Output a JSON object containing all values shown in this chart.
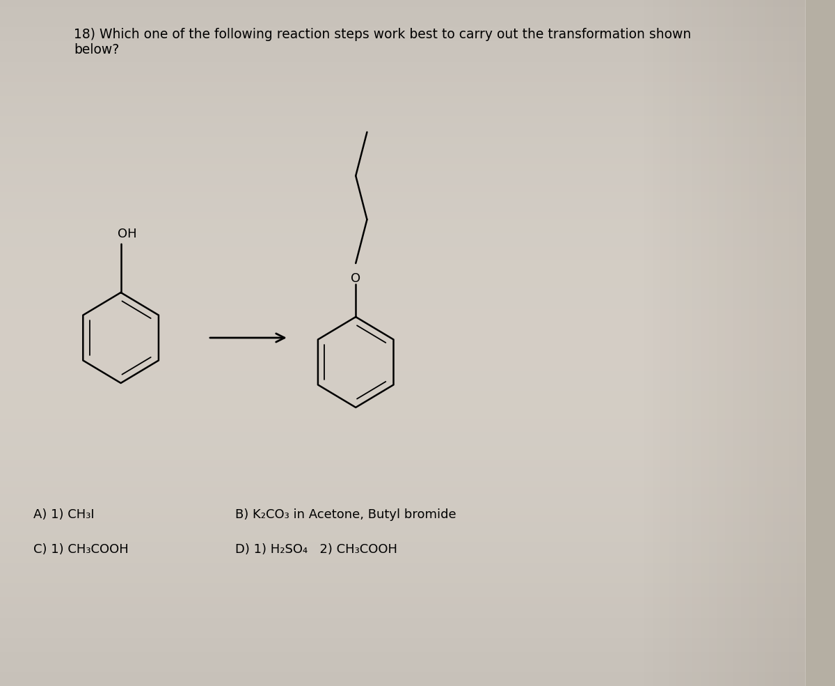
{
  "title_text": "18) Which one of the following reaction steps work best to carry out the transformation shown\nbelow?",
  "title_fontsize": 13.5,
  "bg_color_top": "#b8b0a0",
  "bg_color_mid": "#d4cfc5",
  "bg_color_paper": "#ccc5b5",
  "answer_A": "A) 1) CH₃I",
  "answer_B": "B) K₂CO₃ in Acetone, Butyl bromide",
  "answer_C": "C) 1) CH₃COOH",
  "answer_D": "D) 1) H₂SO₄   2) CH₃COOH",
  "ans_fontsize": 13,
  "mol_lw": 1.8,
  "mol_lw2": 1.3
}
